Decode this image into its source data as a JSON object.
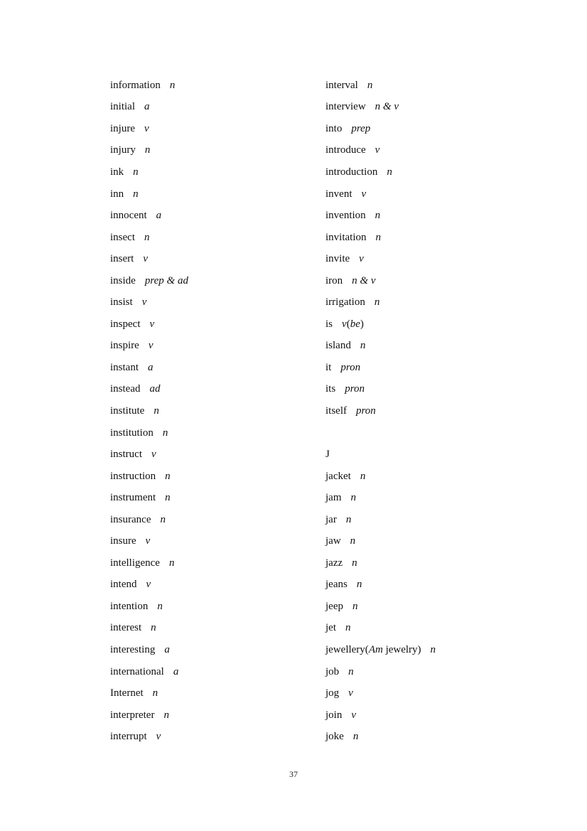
{
  "page": {
    "number": "37"
  },
  "columns": {
    "left": [
      {
        "word": "information",
        "pos": "n"
      },
      {
        "word": "initial",
        "pos": "a"
      },
      {
        "word": "injure",
        "pos": "v"
      },
      {
        "word": "injury",
        "pos": "n"
      },
      {
        "word": "ink",
        "pos": "n"
      },
      {
        "word": "inn",
        "pos": "n"
      },
      {
        "word": "innocent",
        "pos": "a"
      },
      {
        "word": "insect",
        "pos": "n"
      },
      {
        "word": "insert",
        "pos": "v"
      },
      {
        "word": "inside",
        "pos": "prep & ad"
      },
      {
        "word": "insist",
        "pos": "v"
      },
      {
        "word": "inspect",
        "pos": "v"
      },
      {
        "word": "inspire",
        "pos": "v"
      },
      {
        "word": "instant",
        "pos": "a"
      },
      {
        "word": "instead",
        "pos": "ad"
      },
      {
        "word": "institute",
        "pos": "n"
      },
      {
        "word": "institution",
        "pos": "n"
      },
      {
        "word": "instruct",
        "pos": "v"
      },
      {
        "word": "instruction",
        "pos": "n"
      },
      {
        "word": "instrument",
        "pos": "n"
      },
      {
        "word": "insurance",
        "pos": "n"
      },
      {
        "word": "insure",
        "pos": "v"
      },
      {
        "word": "intelligence",
        "pos": "n"
      },
      {
        "word": "intend",
        "pos": "v"
      },
      {
        "word": "intention",
        "pos": "n"
      },
      {
        "word": "interest",
        "pos": "n"
      },
      {
        "word": "interesting",
        "pos": "a"
      },
      {
        "word": "international",
        "pos": "a"
      },
      {
        "word": "Internet",
        "pos": "n"
      },
      {
        "word": "interpreter",
        "pos": "n"
      },
      {
        "word": "interrupt",
        "pos": "v"
      }
    ],
    "right": [
      {
        "word": "interval",
        "pos": "n"
      },
      {
        "word": "interview",
        "pos": "n & v"
      },
      {
        "word": "into",
        "pos": "prep"
      },
      {
        "word": "introduce",
        "pos": "v"
      },
      {
        "word": "introduction",
        "pos": "n"
      },
      {
        "word": "invent",
        "pos": "v"
      },
      {
        "word": "invention",
        "pos": "n"
      },
      {
        "word": "invitation",
        "pos": "n"
      },
      {
        "word": "invite",
        "pos": "v"
      },
      {
        "word": "iron",
        "pos": "n & v"
      },
      {
        "word": "irrigation",
        "pos": "n"
      },
      {
        "word": "is",
        "pos_segments": [
          {
            "text": "v",
            "italic": true
          },
          {
            "text": "(",
            "italic": false
          },
          {
            "text": "be",
            "italic": true
          },
          {
            "text": ")",
            "italic": false
          }
        ]
      },
      {
        "word": "island",
        "pos": "n"
      },
      {
        "word": "it",
        "pos": "pron"
      },
      {
        "word": "its",
        "pos": "pron"
      },
      {
        "word": "itself",
        "pos": "pron"
      },
      {
        "blank": true
      },
      {
        "word": "J",
        "heading": true
      },
      {
        "word": "jacket",
        "pos": "n"
      },
      {
        "word": "jam",
        "pos": "n"
      },
      {
        "word": "jar",
        "pos": "n"
      },
      {
        "word": "jaw",
        "pos": "n"
      },
      {
        "word": "jazz",
        "pos": "n"
      },
      {
        "word": "jeans",
        "pos": "n"
      },
      {
        "word": "jeep",
        "pos": "n"
      },
      {
        "word": "jet",
        "pos": "n"
      },
      {
        "word_segments": [
          {
            "text": "jewellery(",
            "italic": false
          },
          {
            "text": "Am",
            "italic": true
          },
          {
            "text": " jewelry)",
            "italic": false
          }
        ],
        "pos": "n"
      },
      {
        "word": "job",
        "pos": "n"
      },
      {
        "word": "jog",
        "pos": "v"
      },
      {
        "word": "join",
        "pos": "v"
      },
      {
        "word": "joke",
        "pos": "n"
      }
    ]
  }
}
